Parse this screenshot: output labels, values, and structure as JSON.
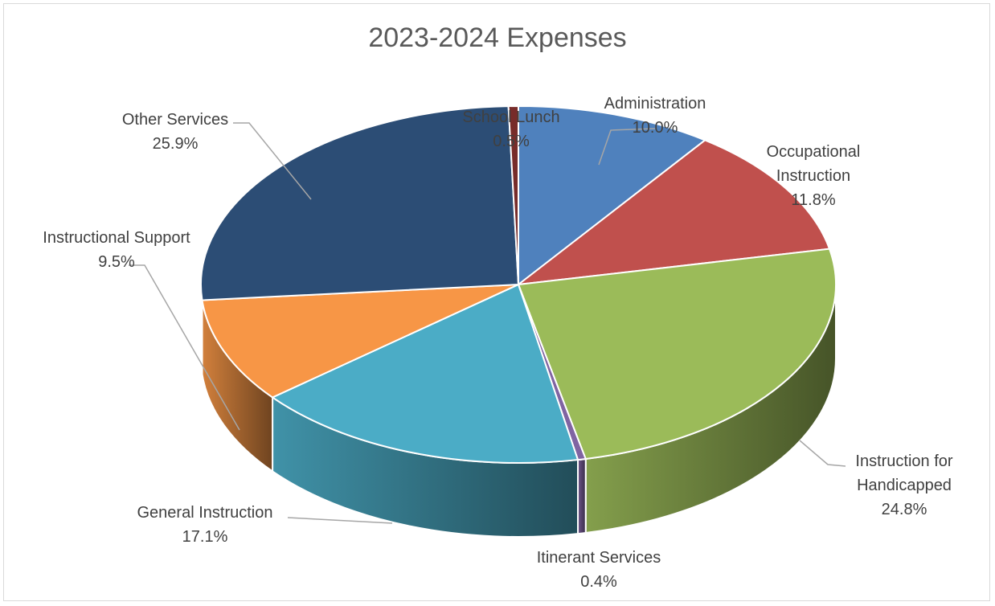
{
  "chart_data": {
    "type": "pie",
    "title": "2023-2024 Expenses",
    "three_d": true,
    "slices": [
      {
        "label_lines": [
          "Administration"
        ],
        "value_label": "10.0%",
        "value": 10.0,
        "color": "#4f81bd"
      },
      {
        "label_lines": [
          "Occupational",
          "Instruction"
        ],
        "value_label": "11.8%",
        "value": 11.8,
        "color": "#c0504d"
      },
      {
        "label_lines": [
          "Instruction for",
          "Handicapped"
        ],
        "value_label": "24.8%",
        "value": 24.8,
        "color": "#9bbb59"
      },
      {
        "label_lines": [
          "Itinerant Services"
        ],
        "value_label": "0.4%",
        "value": 0.4,
        "color": "#8064a2"
      },
      {
        "label_lines": [
          "General Instruction"
        ],
        "value_label": "17.1%",
        "value": 17.1,
        "color": "#4bacc6"
      },
      {
        "label_lines": [
          "Instructional Support"
        ],
        "value_label": "9.5%",
        "value": 9.5,
        "color": "#f79646"
      },
      {
        "label_lines": [
          "Other Services"
        ],
        "value_label": "25.9%",
        "value": 25.9,
        "color": "#2c4d75"
      },
      {
        "label_lines": [
          "School Lunch"
        ],
        "value_label": "0.5%",
        "value": 0.5,
        "color": "#772c2a"
      }
    ]
  }
}
